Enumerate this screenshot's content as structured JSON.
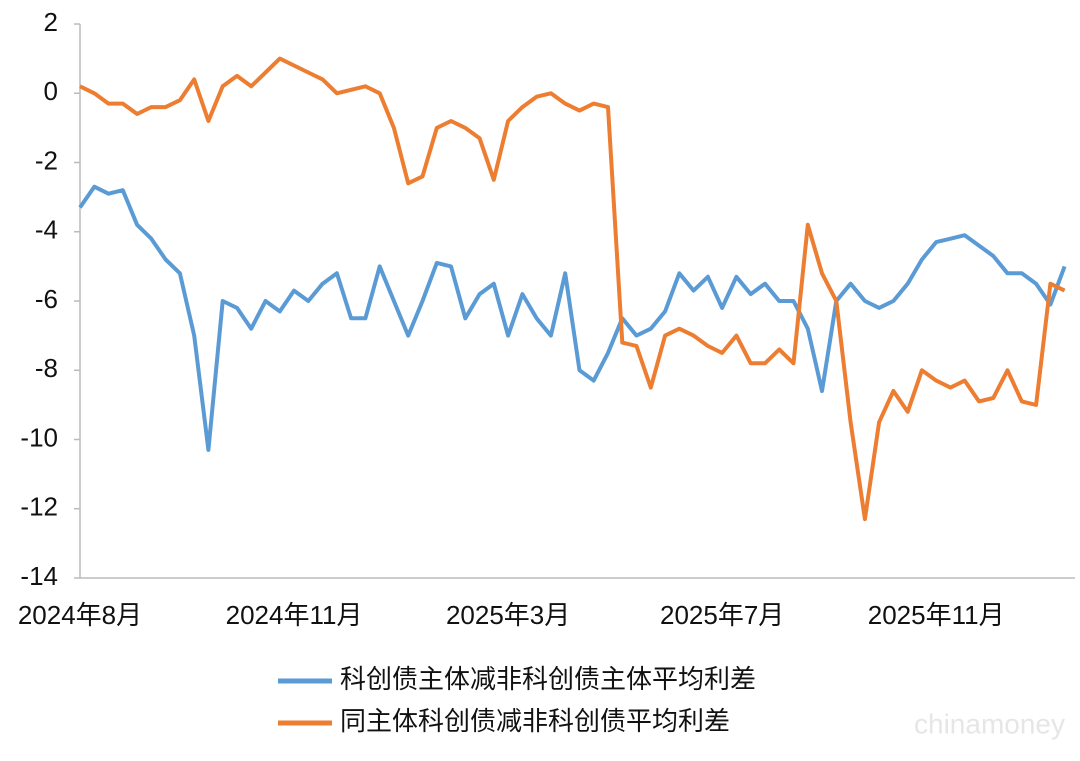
{
  "chart_data": {
    "type": "line",
    "categories": [
      "2024年8月",
      null,
      null,
      null,
      null,
      null,
      null,
      null,
      null,
      null,
      null,
      null,
      null,
      null,
      null,
      "2024年11月",
      null,
      null,
      null,
      null,
      null,
      null,
      null,
      null,
      null,
      null,
      null,
      null,
      null,
      null,
      "2025年3月",
      null,
      null,
      null,
      null,
      null,
      null,
      null,
      null,
      null,
      null,
      null,
      null,
      null,
      null,
      "2025年7月",
      null,
      null,
      null,
      null,
      null,
      null,
      null,
      null,
      null,
      null,
      null,
      null,
      null,
      null,
      "2025年11月",
      null,
      null,
      null,
      null,
      null,
      null,
      null,
      null,
      null
    ],
    "series": [
      {
        "name": "科创债主体减非科创债主体平均利差",
        "color": "#5b9bd5",
        "values": [
          -3.3,
          -2.7,
          -2.9,
          -2.8,
          -3.8,
          -4.2,
          -4.8,
          -5.2,
          -7.0,
          -10.3,
          -6.0,
          -6.2,
          -6.8,
          -6.0,
          -6.3,
          -5.7,
          -6.0,
          -5.5,
          -5.2,
          -6.5,
          -6.5,
          -5.0,
          -6.0,
          -7.0,
          -6.0,
          -4.9,
          -5.0,
          -6.5,
          -5.8,
          -5.5,
          -7.0,
          -5.8,
          -6.5,
          -7.0,
          -5.2,
          -8.0,
          -8.3,
          -7.5,
          -6.5,
          -7.0,
          -6.8,
          -6.3,
          -5.2,
          -5.7,
          -5.3,
          -6.2,
          -5.3,
          -5.8,
          -5.5,
          -6.0,
          -6.0,
          -6.8,
          -8.6,
          -6.0,
          -5.5,
          -6.0,
          -6.2,
          -6.0,
          -5.5,
          -4.8,
          -4.3,
          -4.2,
          -4.1,
          -4.4,
          -4.7,
          -5.2,
          -5.2,
          -5.5,
          -6.1,
          -5.0
        ]
      },
      {
        "name": "同主体科创债减非科创债平均利差",
        "color": "#ed7d31",
        "values": [
          0.2,
          0,
          -0.3,
          -0.3,
          -0.6,
          -0.4,
          -0.4,
          -0.2,
          0.4,
          -0.8,
          0.2,
          0.5,
          0.2,
          0.6,
          1.0,
          0.8,
          0.6,
          0.4,
          0.0,
          0.1,
          0.2,
          0,
          -1.0,
          -2.6,
          -2.4,
          -1.0,
          -0.8,
          -1.0,
          -1.3,
          -2.5,
          -0.8,
          -0.4,
          -0.1,
          0.0,
          -0.3,
          -0.5,
          -0.3,
          -0.4,
          -7.2,
          -7.3,
          -8.5,
          -7.0,
          -6.8,
          -7.0,
          -7.3,
          -7.5,
          -7.0,
          -7.8,
          -7.8,
          -7.4,
          -7.8,
          -3.8,
          -5.2,
          -6.0,
          -9.5,
          -12.3,
          -9.5,
          -8.6,
          -9.2,
          -8.0,
          -8.3,
          -8.5,
          -8.3,
          -8.9,
          -8.8,
          -8.0,
          -8.9,
          -9.0,
          -5.5,
          -5.7
        ]
      }
    ],
    "ylim": [
      -14,
      2
    ],
    "yticks": [
      -14,
      -12,
      -10,
      -8,
      -6,
      -4,
      -2,
      0,
      2
    ],
    "watermark": "chinamoney"
  }
}
